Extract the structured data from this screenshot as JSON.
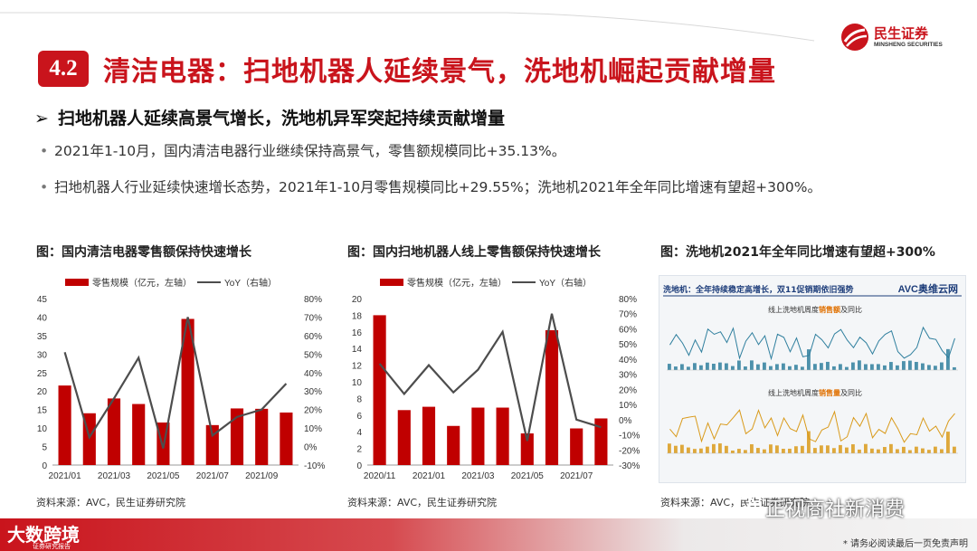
{
  "header": {
    "section_number": "4.2",
    "title": "清洁电器：扫地机器人延续景气，洗地机崛起贡献增量",
    "logo_cn": "民生证券",
    "logo_en": "MINSHENG SECURITIES"
  },
  "heading": {
    "arrow": "➢",
    "text": "扫地机器人延续高景气增长，洗地机异军突起持续贡献增量"
  },
  "bullets": [
    {
      "dot": "•",
      "text": "2021年1-10月，国内清洁电器行业继续保持高景气，零售额规模同比+35.13%。"
    },
    {
      "dot": "•",
      "text": "扫地机器人行业延续快速增长态势，2021年1-10月零售规模同比+29.55%；洗地机2021年全年同比增速有望超+300%。"
    }
  ],
  "charts": [
    {
      "title": "图：国内清洁电器零售额保持快速增长",
      "source": "资料来源：AVC，民生证券研究院"
    },
    {
      "title": "图：国内扫地机器人线上零售额保持快速增长",
      "source": "资料来源：AVC，民生证券研究院"
    },
    {
      "title": "图：洗地机2021年全年同比增速有望超+300%",
      "source": "资料来源：AVC，民生证券研究院"
    }
  ],
  "chart_data": [
    {
      "type": "bar",
      "title": "图：国内清洁电器零售额保持快速增长",
      "categories": [
        "2021/01",
        "2021/02",
        "2021/03",
        "2021/04",
        "2021/05",
        "2021/06",
        "2021/07",
        "2021/08",
        "2021/09",
        "2021/10"
      ],
      "x_tick_labels": [
        "2021/01",
        "2021/03",
        "2021/05",
        "2021/07",
        "2021/09"
      ],
      "series": [
        {
          "name": "零售规模（亿元，左轴）",
          "kind": "bar",
          "axis": "left",
          "color": "#c00000",
          "values": [
            21.5,
            14,
            18,
            16.5,
            11.5,
            39.5,
            10.8,
            15.3,
            15.2,
            14.2
          ]
        },
        {
          "name": "YoY（右轴）",
          "kind": "line",
          "axis": "right",
          "color": "#4d4d4d",
          "values": [
            51,
            5,
            26,
            48,
            -1,
            70,
            6,
            16,
            20,
            34
          ]
        }
      ],
      "ylim_left": [
        0,
        45
      ],
      "yticks_left": [
        0,
        5,
        10,
        15,
        20,
        25,
        30,
        35,
        40,
        45
      ],
      "ylim_right": [
        -10,
        80
      ],
      "yticks_right": [
        "-10%",
        "0%",
        "10%",
        "20%",
        "30%",
        "40%",
        "50%",
        "60%",
        "70%",
        "80%"
      ],
      "grid": false,
      "legend": "top"
    },
    {
      "type": "bar",
      "title": "图：国内扫地机器人线上零售额保持快速增长",
      "categories": [
        "2020/11",
        "2020/12",
        "2021/01",
        "2021/02",
        "2021/03",
        "2021/04",
        "2021/05",
        "2021/06",
        "2021/07",
        "2021/08"
      ],
      "x_tick_labels": [
        "2020/11",
        "2021/01",
        "2021/03",
        "2021/05",
        "2021/07"
      ],
      "series": [
        {
          "name": "零售规模（亿元，左轴）",
          "kind": "bar",
          "axis": "left",
          "color": "#c00000",
          "values": [
            18,
            6.6,
            7,
            4.7,
            6.9,
            6.9,
            3.8,
            16.2,
            4.4,
            5.6
          ]
        },
        {
          "name": "YoY（右轴）",
          "kind": "line",
          "axis": "right",
          "color": "#4d4d4d",
          "values": [
            37,
            17,
            36,
            18,
            33,
            58,
            -14,
            70,
            0,
            -5
          ]
        }
      ],
      "ylim_left": [
        0,
        20
      ],
      "yticks_left": [
        0,
        2,
        4,
        6,
        8,
        10,
        12,
        14,
        16,
        18,
        20
      ],
      "ylim_right": [
        -30,
        80
      ],
      "yticks_right": [
        "-30%",
        "-20%",
        "-10%",
        "0%",
        "10%",
        "20%",
        "30%",
        "40%",
        "50%",
        "60%",
        "70%",
        "80%"
      ],
      "grid": false,
      "legend": "top"
    }
  ],
  "thumbnail": {
    "title": "洗地机：全年持续稳定高增长，双11促销期依旧强势",
    "logo": "AVC奥维云网",
    "sub1_prefix": "线上洗地机周度",
    "sub1_em": "销售额",
    "sub1_suffix": "及同比",
    "sub2_prefix": "线上洗地机周度",
    "sub2_em": "销售量",
    "sub2_suffix": "及同比",
    "colors": {
      "sales_value": "#2f7f9e",
      "sales_volume": "#d99a1a"
    }
  },
  "footer": {
    "brand": "大数跨境",
    "brand_sub": "证券研究报告",
    "note": "* 请务必阅读最后一页免责声明"
  },
  "watermark": {
    "text": "正视商社新消费",
    "icon": "wechat-icon"
  },
  "colors": {
    "accent": "#c9141c",
    "bar": "#c00000",
    "line": "#4d4d4d"
  }
}
